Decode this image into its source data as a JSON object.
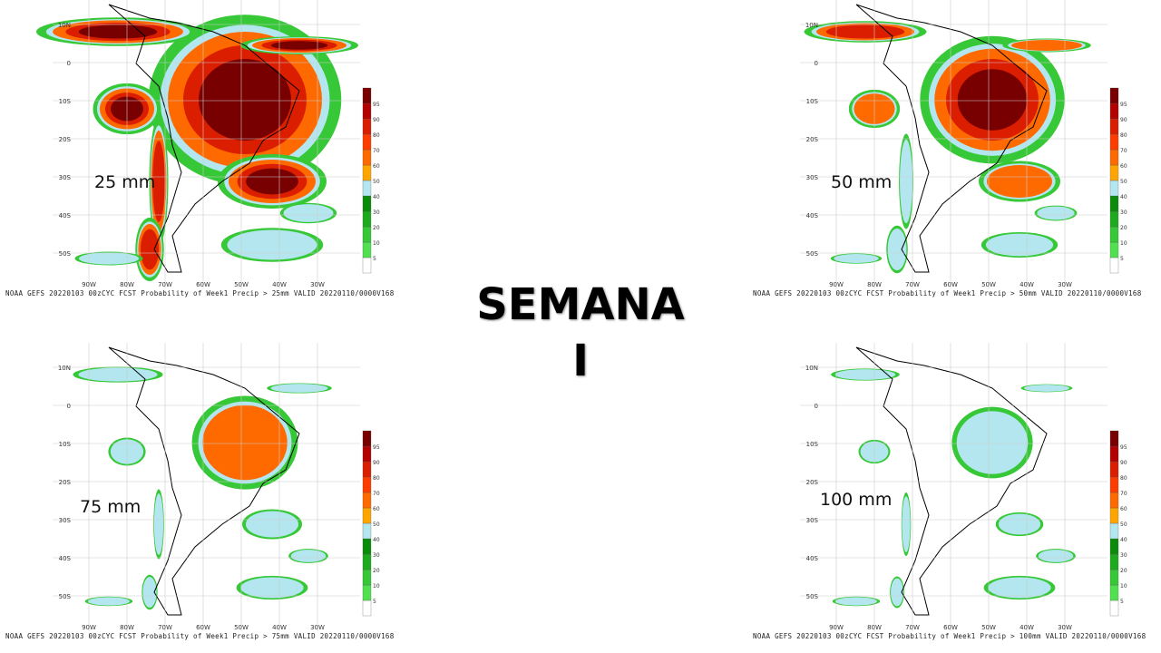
{
  "slide_title": [
    "SEMANA",
    "I"
  ],
  "colorbar": {
    "levels": [
      "5",
      "10",
      "20",
      "30",
      "40",
      "50",
      "60",
      "70",
      "80",
      "90",
      "95"
    ],
    "colors": [
      "#ffffff",
      "#50e050",
      "#36c836",
      "#1eaa1e",
      "#0a8c0a",
      "#b4e6f0",
      "#ffa500",
      "#ff6a00",
      "#ff3c00",
      "#dc1e00",
      "#b40000",
      "#780000"
    ]
  },
  "axes": {
    "lat": [
      "10N",
      "0",
      "10S",
      "20S",
      "30S",
      "40S",
      "50S"
    ],
    "lon": [
      "90W",
      "80W",
      "70W",
      "60W",
      "50W",
      "40W",
      "30W"
    ]
  },
  "panels": [
    {
      "label": "25 mm",
      "caption": "NOAA GEFS 20220103 00zCYC FCST Probability of Week1 Precip > 25mm  VALID 20220110/0000V168",
      "intensity": 1.0
    },
    {
      "label": "50 mm",
      "caption": "NOAA GEFS 20220103 00zCYC FCST Probability of Week1 Precip > 50mm  VALID 20220110/0000V168",
      "intensity": 0.75
    },
    {
      "label": "75 mm",
      "caption": "NOAA GEFS 20220103 00zCYC FCST Probability of Week1 Precip > 75mm  VALID 20220110/0000V168",
      "intensity": 0.55
    },
    {
      "label": "100 mm",
      "caption": "NOAA GEFS 20220103 00zCYC FCST Probability of Week1 Precip > 100mm  VALID 20220110/0000V168",
      "intensity": 0.42
    }
  ]
}
